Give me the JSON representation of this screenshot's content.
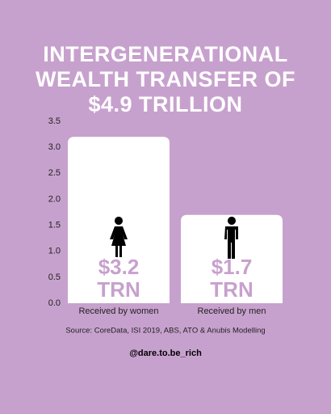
{
  "chart_data": {
    "type": "bar",
    "title": "INTERGENERATIONAL WEALTH TRANSFER OF $4.9 TRILLION",
    "categories": [
      "Received by women",
      "Received by men"
    ],
    "values": [
      3.2,
      1.7
    ],
    "value_labels": [
      "$3.2 TRN",
      "$1.7 TRN"
    ],
    "color": "#ffffff",
    "ylim": [
      0,
      3.5
    ],
    "yticks": [
      {
        "value": 0,
        "label": "0.0"
      },
      0.5,
      {
        "value": 1,
        "label": "1.0"
      },
      1.5,
      {
        "value": 2,
        "label": "2.0"
      },
      2.5,
      {
        "value": 3,
        "label": "3.0"
      },
      3.5
    ],
    "source": "Source: CoreData, ISI 2019, ABS, ATO & Anubis Modelling",
    "handle": "@dare.to.be_rich"
  }
}
